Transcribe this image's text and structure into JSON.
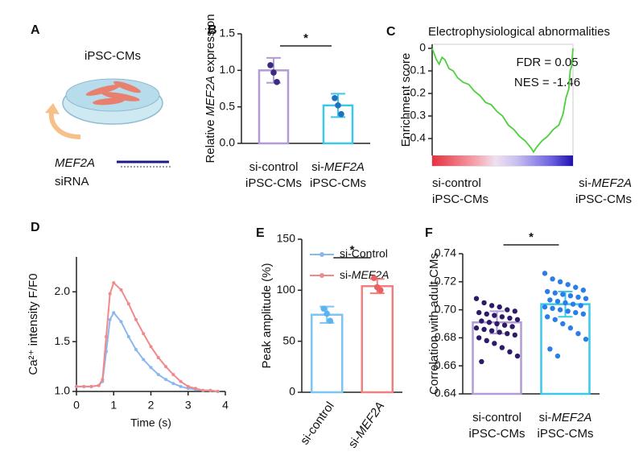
{
  "panel_a": {
    "label": "A",
    "title": "iPSC-CMs",
    "gene": "MEF2A",
    "reagent": "siRNA"
  },
  "chart_data": [
    {
      "panel": "B",
      "type": "bar",
      "ylabel": [
        "Relative ",
        "MEF2A",
        " expression"
      ],
      "categories": [
        [
          "si-control",
          "iPSC-CMs"
        ],
        [
          [
            "si-",
            "MEF2A"
          ],
          "iPSC-CMs"
        ]
      ],
      "values": [
        1.0,
        0.52
      ],
      "errors": [
        0.17,
        0.16
      ],
      "points": [
        [
          1.07,
          0.97,
          0.84
        ],
        [
          0.62,
          0.52,
          0.4
        ]
      ],
      "colors": [
        "#b29bd6",
        "#3cc8e8"
      ],
      "point_colors": [
        "#3a2a80",
        "#2070c0"
      ],
      "ylim": [
        0,
        1.5
      ],
      "yticks": [
        {
          "value": 0,
          "label": "0.0"
        },
        0.5,
        {
          "value": 1,
          "label": "1.0"
        },
        1.5
      ],
      "significance": "*"
    },
    {
      "panel": "C",
      "type": "gsea",
      "title": "Electrophysiological abnormalities",
      "ylabel": "Enrichment score",
      "annotations": [
        "FDR = 0.05",
        "NES = -1.46"
      ],
      "x": [
        0,
        3,
        5,
        7,
        9,
        12,
        15,
        18,
        22,
        26,
        30,
        34,
        38,
        42,
        46,
        50,
        54,
        58,
        62,
        66,
        70,
        72,
        74,
        78,
        82,
        86,
        90,
        93,
        95,
        97,
        98,
        99,
        100
      ],
      "values": [
        0,
        -0.05,
        -0.07,
        -0.04,
        -0.05,
        -0.09,
        -0.1,
        -0.13,
        -0.15,
        -0.16,
        -0.19,
        -0.21,
        -0.24,
        -0.25,
        -0.28,
        -0.3,
        -0.34,
        -0.36,
        -0.39,
        -0.41,
        -0.44,
        -0.46,
        -0.44,
        -0.41,
        -0.39,
        -0.36,
        -0.34,
        -0.29,
        -0.22,
        -0.18,
        -0.1,
        -0.08,
        0
      ],
      "color": "#4cd13c",
      "xlim": [
        0,
        100
      ],
      "ylim": [
        -0.475,
        0.018
      ],
      "yticks": [
        0,
        -0.1,
        -0.2,
        -0.3,
        -0.4
      ],
      "groups": [
        [
          "si-control",
          "iPSC-CMs"
        ],
        [
          [
            "si-",
            "MEF2A"
          ],
          "iPSC-CMs"
        ]
      ]
    },
    {
      "panel": "D",
      "type": "line",
      "xlabel": "Time (s)",
      "ylabel": "Ca²⁺ intensity F/F0",
      "x": [
        0,
        0.2,
        0.4,
        0.6,
        0.7,
        0.8,
        0.9,
        1.0,
        1.2,
        1.4,
        1.6,
        1.8,
        2.0,
        2.2,
        2.4,
        2.6,
        2.8,
        3.0,
        3.2,
        3.4,
        3.6,
        3.8
      ],
      "series": [
        {
          "name": "si-Control",
          "color": "#8ab8ec",
          "values": [
            1.05,
            1.05,
            1.05,
            1.06,
            1.1,
            1.4,
            1.72,
            1.79,
            1.7,
            1.55,
            1.42,
            1.32,
            1.24,
            1.17,
            1.12,
            1.08,
            1.05,
            1.03,
            1.02,
            1.01,
            1.01,
            1.0
          ]
        },
        {
          "name": [
            "si-",
            "MEF2A"
          ],
          "color": "#f08a8a",
          "values": [
            1.05,
            1.05,
            1.05,
            1.06,
            1.12,
            1.55,
            1.98,
            2.09,
            2.02,
            1.88,
            1.72,
            1.58,
            1.45,
            1.34,
            1.25,
            1.17,
            1.1,
            1.05,
            1.03,
            1.01,
            1.01,
            1.0
          ]
        }
      ],
      "xlim": [
        0,
        4
      ],
      "xticks": [
        0,
        1,
        2,
        3,
        4
      ],
      "ylim": [
        1.0,
        2.35
      ],
      "yticks": [
        {
          "value": 1,
          "label": "1.0"
        },
        1.5,
        {
          "value": 2,
          "label": "2.0"
        }
      ]
    },
    {
      "panel": "E",
      "type": "bar",
      "ylabel": "Peak amplitude (%)",
      "categories": [
        [
          "si-control"
        ],
        [
          [
            "si-",
            "MEF2A"
          ]
        ]
      ],
      "values": [
        76,
        104
      ],
      "errors": [
        8,
        7
      ],
      "points": [
        [
          82,
          77,
          70
        ],
        [
          112,
          103,
          100
        ]
      ],
      "colors": [
        "#7cc4f2",
        "#f08080"
      ],
      "point_colors": [
        "#5ab4f0",
        "#e86060"
      ],
      "ylim": [
        0,
        150
      ],
      "yticks": [
        0,
        50,
        100,
        150
      ],
      "significance": "*"
    },
    {
      "panel": "F",
      "type": "bar",
      "ylabel": "Correlation with adult CMs",
      "categories": [
        [
          "si-control",
          "iPSC-CMs"
        ],
        [
          [
            "si-",
            "MEF2A"
          ],
          "iPSC-CMs"
        ]
      ],
      "values": [
        0.691,
        0.704
      ],
      "errors": [
        0.008,
        0.009
      ],
      "points": [
        [
          0.708,
          0.705,
          0.703,
          0.702,
          0.7,
          0.699,
          0.698,
          0.697,
          0.696,
          0.695,
          0.694,
          0.693,
          0.692,
          0.691,
          0.69,
          0.689,
          0.688,
          0.687,
          0.686,
          0.685,
          0.684,
          0.683,
          0.682,
          0.68,
          0.678,
          0.676,
          0.673,
          0.67,
          0.667,
          0.663
        ],
        [
          0.726,
          0.722,
          0.72,
          0.718,
          0.716,
          0.714,
          0.713,
          0.712,
          0.711,
          0.71,
          0.709,
          0.708,
          0.707,
          0.706,
          0.705,
          0.704,
          0.703,
          0.702,
          0.701,
          0.7,
          0.699,
          0.698,
          0.697,
          0.695,
          0.693,
          0.69,
          0.687,
          0.683,
          0.679,
          0.672,
          0.667
        ]
      ],
      "colors": [
        "#b29bd6",
        "#3cc8e8"
      ],
      "point_colors": [
        "#2e1a66",
        "#2b7de9"
      ],
      "ylim": [
        0.64,
        0.74
      ],
      "yticks": [
        0.64,
        0.66,
        0.68,
        {
          "value": 0.7,
          "label": "0.70"
        },
        0.72,
        0.74
      ],
      "significance": "*"
    }
  ]
}
